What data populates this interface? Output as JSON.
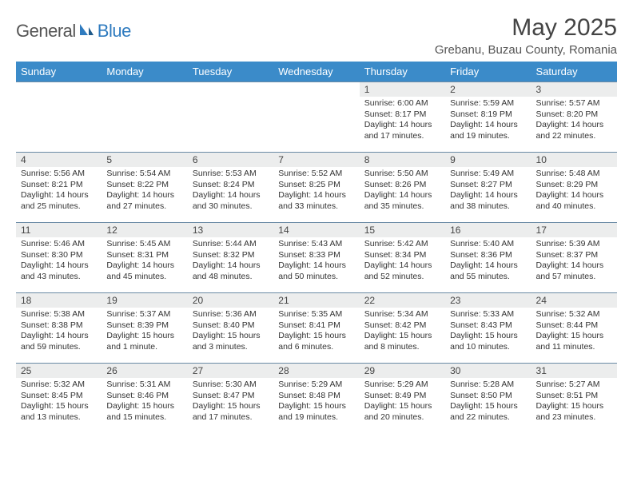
{
  "logo": {
    "general": "General",
    "blue": "Blue"
  },
  "title": "May 2025",
  "location": "Grebanu, Buzau County, Romania",
  "colors": {
    "header_bg": "#3b8bc9",
    "header_text": "#ffffff",
    "daynum_bg": "#eceded",
    "border": "#6a8aa5",
    "logo_gray": "#555555",
    "logo_blue": "#2f7bbf"
  },
  "weekdays": [
    "Sunday",
    "Monday",
    "Tuesday",
    "Wednesday",
    "Thursday",
    "Friday",
    "Saturday"
  ],
  "weeks": [
    [
      null,
      null,
      null,
      null,
      {
        "n": "1",
        "sr": "6:00 AM",
        "ss": "8:17 PM",
        "dl": "14 hours and 17 minutes."
      },
      {
        "n": "2",
        "sr": "5:59 AM",
        "ss": "8:19 PM",
        "dl": "14 hours and 19 minutes."
      },
      {
        "n": "3",
        "sr": "5:57 AM",
        "ss": "8:20 PM",
        "dl": "14 hours and 22 minutes."
      }
    ],
    [
      {
        "n": "4",
        "sr": "5:56 AM",
        "ss": "8:21 PM",
        "dl": "14 hours and 25 minutes."
      },
      {
        "n": "5",
        "sr": "5:54 AM",
        "ss": "8:22 PM",
        "dl": "14 hours and 27 minutes."
      },
      {
        "n": "6",
        "sr": "5:53 AM",
        "ss": "8:24 PM",
        "dl": "14 hours and 30 minutes."
      },
      {
        "n": "7",
        "sr": "5:52 AM",
        "ss": "8:25 PM",
        "dl": "14 hours and 33 minutes."
      },
      {
        "n": "8",
        "sr": "5:50 AM",
        "ss": "8:26 PM",
        "dl": "14 hours and 35 minutes."
      },
      {
        "n": "9",
        "sr": "5:49 AM",
        "ss": "8:27 PM",
        "dl": "14 hours and 38 minutes."
      },
      {
        "n": "10",
        "sr": "5:48 AM",
        "ss": "8:29 PM",
        "dl": "14 hours and 40 minutes."
      }
    ],
    [
      {
        "n": "11",
        "sr": "5:46 AM",
        "ss": "8:30 PM",
        "dl": "14 hours and 43 minutes."
      },
      {
        "n": "12",
        "sr": "5:45 AM",
        "ss": "8:31 PM",
        "dl": "14 hours and 45 minutes."
      },
      {
        "n": "13",
        "sr": "5:44 AM",
        "ss": "8:32 PM",
        "dl": "14 hours and 48 minutes."
      },
      {
        "n": "14",
        "sr": "5:43 AM",
        "ss": "8:33 PM",
        "dl": "14 hours and 50 minutes."
      },
      {
        "n": "15",
        "sr": "5:42 AM",
        "ss": "8:34 PM",
        "dl": "14 hours and 52 minutes."
      },
      {
        "n": "16",
        "sr": "5:40 AM",
        "ss": "8:36 PM",
        "dl": "14 hours and 55 minutes."
      },
      {
        "n": "17",
        "sr": "5:39 AM",
        "ss": "8:37 PM",
        "dl": "14 hours and 57 minutes."
      }
    ],
    [
      {
        "n": "18",
        "sr": "5:38 AM",
        "ss": "8:38 PM",
        "dl": "14 hours and 59 minutes."
      },
      {
        "n": "19",
        "sr": "5:37 AM",
        "ss": "8:39 PM",
        "dl": "15 hours and 1 minute."
      },
      {
        "n": "20",
        "sr": "5:36 AM",
        "ss": "8:40 PM",
        "dl": "15 hours and 3 minutes."
      },
      {
        "n": "21",
        "sr": "5:35 AM",
        "ss": "8:41 PM",
        "dl": "15 hours and 6 minutes."
      },
      {
        "n": "22",
        "sr": "5:34 AM",
        "ss": "8:42 PM",
        "dl": "15 hours and 8 minutes."
      },
      {
        "n": "23",
        "sr": "5:33 AM",
        "ss": "8:43 PM",
        "dl": "15 hours and 10 minutes."
      },
      {
        "n": "24",
        "sr": "5:32 AM",
        "ss": "8:44 PM",
        "dl": "15 hours and 11 minutes."
      }
    ],
    [
      {
        "n": "25",
        "sr": "5:32 AM",
        "ss": "8:45 PM",
        "dl": "15 hours and 13 minutes."
      },
      {
        "n": "26",
        "sr": "5:31 AM",
        "ss": "8:46 PM",
        "dl": "15 hours and 15 minutes."
      },
      {
        "n": "27",
        "sr": "5:30 AM",
        "ss": "8:47 PM",
        "dl": "15 hours and 17 minutes."
      },
      {
        "n": "28",
        "sr": "5:29 AM",
        "ss": "8:48 PM",
        "dl": "15 hours and 19 minutes."
      },
      {
        "n": "29",
        "sr": "5:29 AM",
        "ss": "8:49 PM",
        "dl": "15 hours and 20 minutes."
      },
      {
        "n": "30",
        "sr": "5:28 AM",
        "ss": "8:50 PM",
        "dl": "15 hours and 22 minutes."
      },
      {
        "n": "31",
        "sr": "5:27 AM",
        "ss": "8:51 PM",
        "dl": "15 hours and 23 minutes."
      }
    ]
  ],
  "labels": {
    "sunrise": "Sunrise: ",
    "sunset": "Sunset: ",
    "daylight": "Daylight: "
  }
}
